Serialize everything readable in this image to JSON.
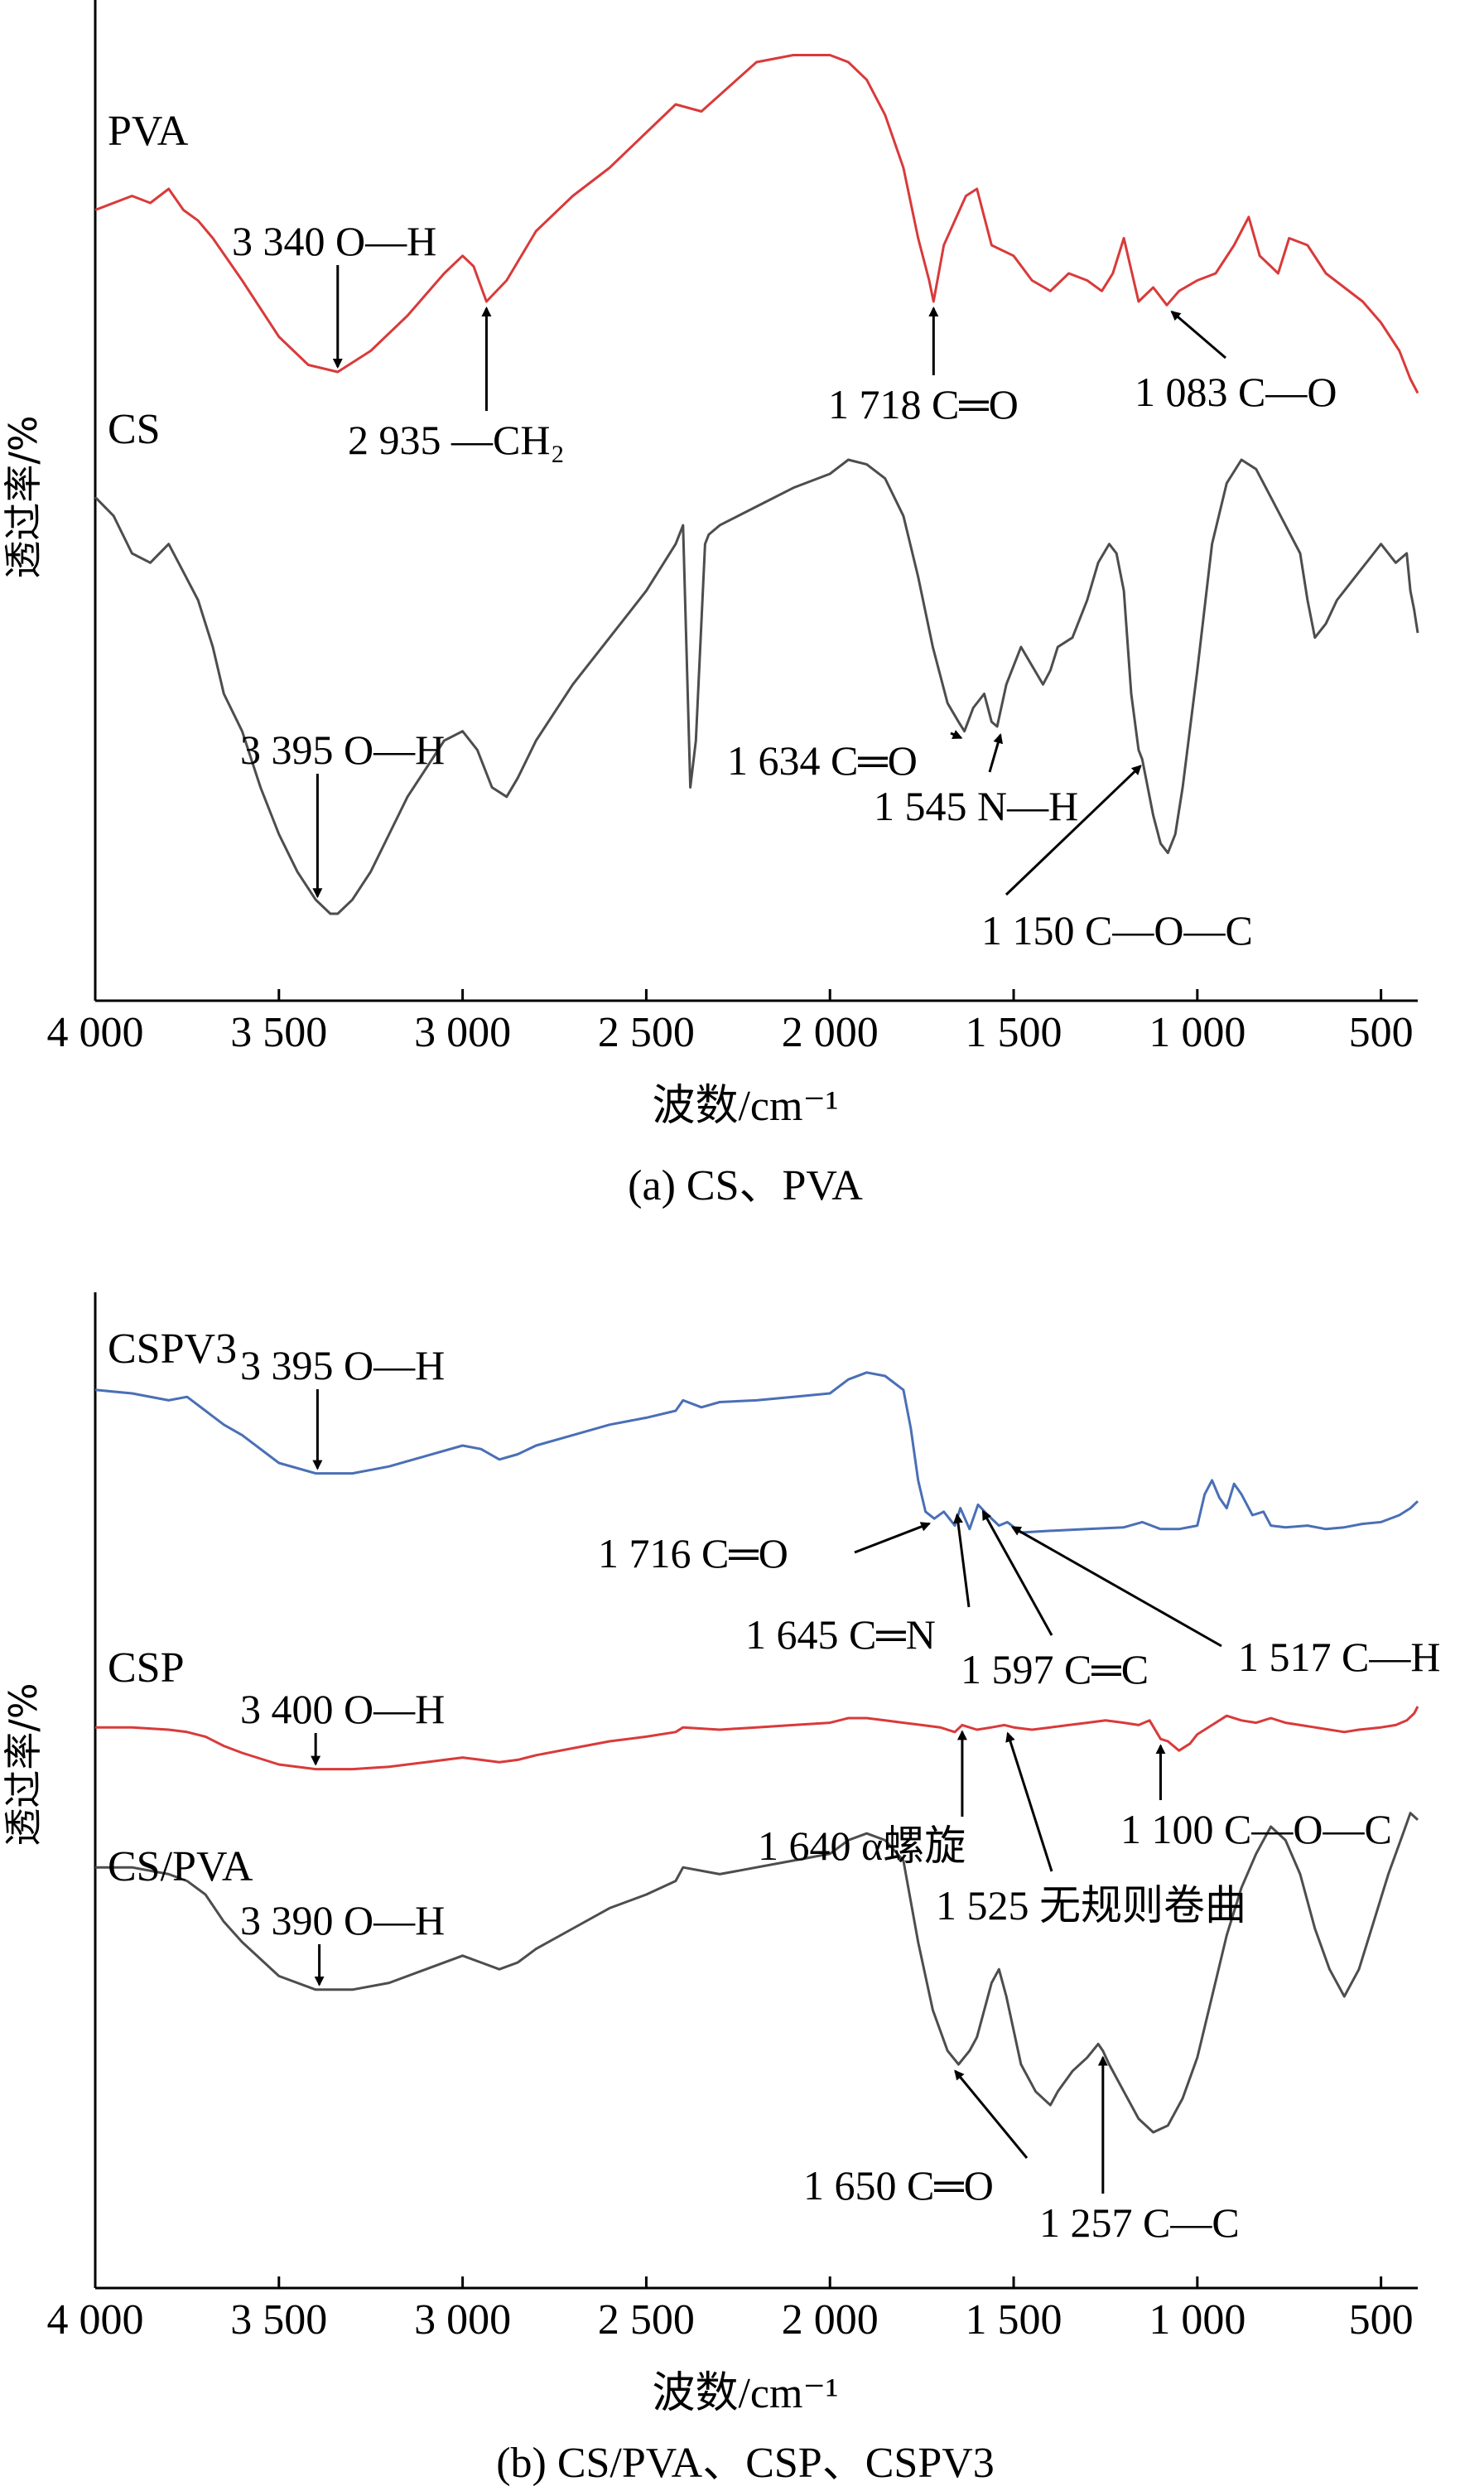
{
  "chart_data": [
    {
      "type": "line",
      "caption": "(a) CS、PVA",
      "xlabel": "波数/cm⁻¹",
      "ylabel": "透过率/%",
      "xlim": [
        4000,
        400
      ],
      "x_reversed": true,
      "xticks": [
        4000,
        3500,
        3000,
        2500,
        2000,
        1500,
        1000,
        500
      ],
      "xtick_labels": [
        "4 000",
        "3 500",
        "3 000",
        "2 500",
        "2 000",
        "1 500",
        "1 000",
        "500"
      ],
      "grid": false,
      "series": [
        {
          "name": "PVA",
          "color": "#d93a3a",
          "x": [
            4000,
            3900,
            3850,
            3800,
            3760,
            3720,
            3680,
            3600,
            3500,
            3420,
            3340,
            3250,
            3150,
            3050,
            3000,
            2970,
            2935,
            2880,
            2800,
            2700,
            2600,
            2500,
            2420,
            2350,
            2200,
            2100,
            2000,
            1950,
            1900,
            1850,
            1800,
            1760,
            1730,
            1718,
            1690,
            1660,
            1630,
            1600,
            1560,
            1500,
            1450,
            1400,
            1350,
            1300,
            1260,
            1230,
            1200,
            1160,
            1120,
            1083,
            1050,
            1000,
            950,
            900,
            860,
            830,
            800,
            780,
            750,
            700,
            650,
            600,
            550,
            500,
            450,
            420,
            400
          ],
          "y": [
            0.58,
            0.62,
            0.6,
            0.64,
            0.58,
            0.55,
            0.5,
            0.38,
            0.22,
            0.14,
            0.12,
            0.18,
            0.28,
            0.4,
            0.45,
            0.42,
            0.32,
            0.38,
            0.52,
            0.62,
            0.7,
            0.8,
            0.88,
            0.86,
            1.0,
            1.02,
            1.02,
            1.0,
            0.95,
            0.85,
            0.7,
            0.5,
            0.38,
            0.32,
            0.48,
            0.55,
            0.62,
            0.64,
            0.48,
            0.45,
            0.38,
            0.35,
            0.4,
            0.38,
            0.35,
            0.4,
            0.5,
            0.32,
            0.36,
            0.31,
            0.35,
            0.38,
            0.4,
            0.48,
            0.56,
            0.45,
            0.42,
            0.4,
            0.5,
            0.48,
            0.4,
            0.36,
            0.32,
            0.26,
            0.18,
            0.1,
            0.06
          ]
        },
        {
          "name": "CS",
          "color": "#4d4d4d",
          "x": [
            4000,
            3950,
            3900,
            3850,
            3800,
            3760,
            3720,
            3680,
            3650,
            3600,
            3550,
            3500,
            3450,
            3400,
            3360,
            3340,
            3300,
            3250,
            3200,
            3150,
            3100,
            3050,
            3000,
            2960,
            2920,
            2880,
            2850,
            2800,
            2700,
            2600,
            2500,
            2420,
            2400,
            2380,
            2365,
            2340,
            2330,
            2300,
            2200,
            2100,
            2000,
            1950,
            1900,
            1850,
            1800,
            1760,
            1720,
            1680,
            1650,
            1634,
            1610,
            1580,
            1560,
            1545,
            1520,
            1480,
            1450,
            1420,
            1400,
            1380,
            1340,
            1300,
            1270,
            1240,
            1220,
            1200,
            1180,
            1160,
            1150,
            1120,
            1100,
            1080,
            1060,
            1040,
            1000,
            960,
            920,
            880,
            840,
            800,
            760,
            720,
            700,
            680,
            650,
            620,
            600,
            560,
            520,
            500,
            460,
            430,
            420,
            410,
            400
          ],
          "y": [
            0.92,
            0.88,
            0.8,
            0.78,
            0.82,
            0.76,
            0.7,
            0.6,
            0.5,
            0.42,
            0.3,
            0.2,
            0.12,
            0.06,
            0.03,
            0.03,
            0.06,
            0.12,
            0.2,
            0.28,
            0.34,
            0.4,
            0.42,
            0.38,
            0.3,
            0.28,
            0.32,
            0.4,
            0.52,
            0.62,
            0.72,
            0.82,
            0.86,
            0.3,
            0.4,
            0.82,
            0.84,
            0.86,
            0.9,
            0.94,
            0.97,
            1.0,
            0.99,
            0.96,
            0.88,
            0.75,
            0.6,
            0.48,
            0.44,
            0.42,
            0.47,
            0.5,
            0.44,
            0.43,
            0.52,
            0.6,
            0.56,
            0.52,
            0.55,
            0.6,
            0.62,
            0.7,
            0.78,
            0.82,
            0.8,
            0.72,
            0.5,
            0.38,
            0.36,
            0.24,
            0.18,
            0.16,
            0.2,
            0.3,
            0.55,
            0.82,
            0.95,
            1.0,
            0.98,
            0.92,
            0.86,
            0.8,
            0.7,
            0.62,
            0.65,
            0.7,
            0.72,
            0.76,
            0.8,
            0.82,
            0.78,
            0.8,
            0.72,
            0.68,
            0.63
          ]
        }
      ],
      "annotations": [
        {
          "series": "PVA",
          "x": 3340,
          "label": "3 340",
          "group": "O—H"
        },
        {
          "series": "PVA",
          "x": 2935,
          "label": "2 935",
          "group": "—CH₂"
        },
        {
          "series": "PVA",
          "x": 1718,
          "label": "1 718",
          "group": "C═O"
        },
        {
          "series": "PVA",
          "x": 1083,
          "label": "1 083",
          "group": "C—O"
        },
        {
          "series": "CS",
          "x": 3395,
          "label": "3 395",
          "group": "O—H"
        },
        {
          "series": "CS",
          "x": 1634,
          "label": "1 634",
          "group": "C═O"
        },
        {
          "series": "CS",
          "x": 1545,
          "label": "1 545",
          "group": "N—H"
        },
        {
          "series": "CS",
          "x": 1150,
          "label": "1 150",
          "group": "C—O—C"
        }
      ]
    },
    {
      "type": "line",
      "caption": "(b) CS/PVA、CSP、CSPV3",
      "xlabel": "波数/cm⁻¹",
      "ylabel": "透过率/%",
      "xlim": [
        4000,
        400
      ],
      "x_reversed": true,
      "xticks": [
        4000,
        3500,
        3000,
        2500,
        2000,
        1500,
        1000,
        500
      ],
      "xtick_labels": [
        "4 000",
        "3 500",
        "3 000",
        "2 500",
        "2 000",
        "1 500",
        "1 000",
        "500"
      ],
      "grid": false,
      "series": [
        {
          "name": "CSPV3",
          "color": "#4a6fb5",
          "x": [
            4000,
            3900,
            3800,
            3750,
            3700,
            3650,
            3600,
            3500,
            3400,
            3300,
            3200,
            3100,
            3000,
            2950,
            2900,
            2850,
            2800,
            2700,
            2600,
            2500,
            2420,
            2400,
            2350,
            2300,
            2200,
            2100,
            2000,
            1950,
            1900,
            1850,
            1800,
            1780,
            1760,
            1740,
            1716,
            1690,
            1660,
            1645,
            1620,
            1597,
            1570,
            1540,
            1517,
            1480,
            1400,
            1300,
            1200,
            1150,
            1100,
            1050,
            1000,
            980,
            960,
            940,
            920,
            900,
            880,
            850,
            820,
            800,
            760,
            700,
            650,
            600,
            550,
            500,
            450,
            420,
            400
          ],
          "y": [
            0.82,
            0.8,
            0.76,
            0.78,
            0.7,
            0.62,
            0.56,
            0.4,
            0.34,
            0.34,
            0.38,
            0.44,
            0.5,
            0.48,
            0.42,
            0.45,
            0.5,
            0.56,
            0.62,
            0.66,
            0.7,
            0.76,
            0.72,
            0.75,
            0.76,
            0.78,
            0.8,
            0.88,
            0.92,
            0.9,
            0.82,
            0.6,
            0.3,
            0.12,
            0.08,
            0.12,
            0.04,
            0.14,
            0.02,
            0.16,
            0.1,
            0.04,
            0.06,
            0.0,
            0.01,
            0.02,
            0.03,
            0.06,
            0.02,
            0.02,
            0.04,
            0.22,
            0.3,
            0.2,
            0.14,
            0.28,
            0.22,
            0.1,
            0.12,
            0.04,
            0.03,
            0.04,
            0.02,
            0.03,
            0.05,
            0.06,
            0.1,
            0.14,
            0.18
          ]
        },
        {
          "name": "CSP",
          "color": "#d93a3a",
          "x": [
            4000,
            3900,
            3800,
            3750,
            3700,
            3650,
            3600,
            3500,
            3400,
            3300,
            3200,
            3100,
            3000,
            2950,
            2900,
            2850,
            2800,
            2700,
            2600,
            2500,
            2420,
            2400,
            2300,
            2200,
            2100,
            2000,
            1950,
            1900,
            1850,
            1800,
            1750,
            1700,
            1660,
            1640,
            1600,
            1560,
            1525,
            1500,
            1450,
            1400,
            1350,
            1300,
            1250,
            1200,
            1160,
            1130,
            1100,
            1080,
            1050,
            1020,
            1000,
            960,
            920,
            880,
            840,
            800,
            760,
            720,
            680,
            640,
            600,
            560,
            500,
            460,
            430,
            410,
            400
          ],
          "y": [
            0.82,
            0.82,
            0.8,
            0.78,
            0.74,
            0.66,
            0.6,
            0.5,
            0.46,
            0.46,
            0.48,
            0.52,
            0.56,
            0.54,
            0.52,
            0.54,
            0.58,
            0.64,
            0.7,
            0.74,
            0.78,
            0.82,
            0.8,
            0.82,
            0.84,
            0.86,
            0.9,
            0.9,
            0.88,
            0.86,
            0.84,
            0.82,
            0.78,
            0.84,
            0.8,
            0.82,
            0.84,
            0.82,
            0.8,
            0.82,
            0.84,
            0.86,
            0.88,
            0.86,
            0.84,
            0.88,
            0.72,
            0.7,
            0.62,
            0.68,
            0.76,
            0.84,
            0.92,
            0.88,
            0.86,
            0.9,
            0.86,
            0.84,
            0.82,
            0.8,
            0.78,
            0.8,
            0.82,
            0.84,
            0.88,
            0.94,
            1.0
          ]
        },
        {
          "name": "CS/PVA",
          "color": "#4d4d4d",
          "x": [
            4000,
            3900,
            3800,
            3750,
            3700,
            3650,
            3600,
            3500,
            3400,
            3300,
            3200,
            3100,
            3000,
            2950,
            2900,
            2850,
            2800,
            2700,
            2600,
            2500,
            2420,
            2400,
            2300,
            2200,
            2100,
            2000,
            1950,
            1900,
            1850,
            1800,
            1760,
            1720,
            1680,
            1650,
            1620,
            1600,
            1560,
            1540,
            1520,
            1480,
            1440,
            1400,
            1380,
            1340,
            1300,
            1270,
            1257,
            1240,
            1200,
            1160,
            1120,
            1080,
            1040,
            1000,
            960,
            920,
            880,
            840,
            800,
            760,
            720,
            680,
            640,
            600,
            560,
            520,
            480,
            440,
            420,
            400
          ],
          "y": [
            0.88,
            0.88,
            0.86,
            0.84,
            0.8,
            0.72,
            0.66,
            0.56,
            0.52,
            0.52,
            0.54,
            0.58,
            0.62,
            0.6,
            0.58,
            0.6,
            0.64,
            0.7,
            0.76,
            0.8,
            0.84,
            0.88,
            0.86,
            0.88,
            0.9,
            0.92,
            0.96,
            0.98,
            0.96,
            0.9,
            0.66,
            0.46,
            0.34,
            0.3,
            0.34,
            0.38,
            0.54,
            0.58,
            0.5,
            0.3,
            0.22,
            0.18,
            0.22,
            0.28,
            0.32,
            0.36,
            0.34,
            0.3,
            0.22,
            0.14,
            0.1,
            0.12,
            0.2,
            0.32,
            0.5,
            0.68,
            0.82,
            0.92,
            1.0,
            0.96,
            0.86,
            0.7,
            0.58,
            0.5,
            0.58,
            0.72,
            0.86,
            0.98,
            1.04,
            1.02
          ]
        }
      ],
      "annotations": [
        {
          "series": "CSPV3",
          "x": 3395,
          "label": "3 395",
          "group": "O—H"
        },
        {
          "series": "CSPV3",
          "x": 1716,
          "label": "1 716",
          "group": "C═O"
        },
        {
          "series": "CSPV3",
          "x": 1645,
          "label": "1 645",
          "group": "C═N"
        },
        {
          "series": "CSPV3",
          "x": 1597,
          "label": "1 597",
          "group": "C═C"
        },
        {
          "series": "CSPV3",
          "x": 1517,
          "label": "1 517",
          "group": "C—H"
        },
        {
          "series": "CSP",
          "x": 3400,
          "label": "3 400",
          "group": "O—H"
        },
        {
          "series": "CSP",
          "x": 1640,
          "label": "1 640",
          "group": "α螺旋"
        },
        {
          "series": "CSP",
          "x": 1525,
          "label": "1 525",
          "group": "无规则卷曲"
        },
        {
          "series": "CSP",
          "x": 1100,
          "label": "1 100",
          "group": "C—O—C"
        },
        {
          "series": "CS/PVA",
          "x": 3390,
          "label": "3 390",
          "group": "O—H"
        },
        {
          "series": "CS/PVA",
          "x": 1650,
          "label": "1 650",
          "group": "C═O"
        },
        {
          "series": "CS/PVA",
          "x": 1257,
          "label": "1 257",
          "group": "C—C"
        }
      ]
    }
  ]
}
